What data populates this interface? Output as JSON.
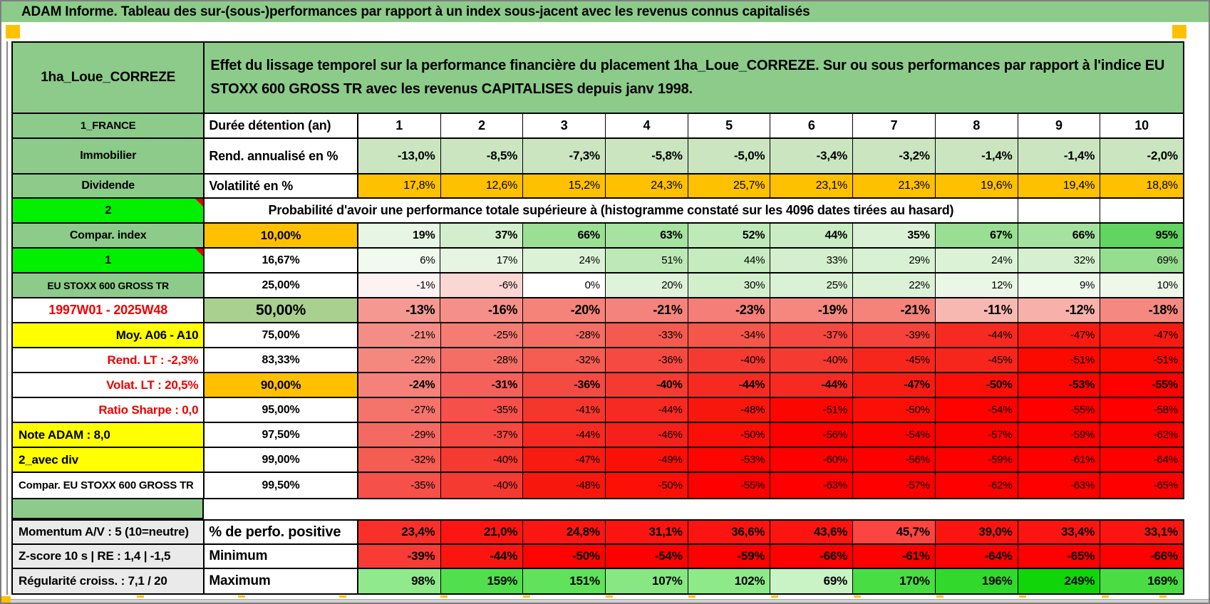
{
  "title": "ADAM Informe. Tableau des sur-(sous-)performances par rapport à un index sous-jacent avec les revenus connus capitalisés",
  "panel": {
    "name": "1ha_Loue_CORREZE",
    "description": "Effet du lissage temporel sur la performance financière du placement 1ha_Loue_CORREZE. Sur ou sous performances par rapport à l'indice EU STOXX 600 GROSS TR avec les revenus CAPITALISES depuis janv 1998."
  },
  "colors": {
    "green": "#8ccb8a",
    "green_mid": "#a9d08e",
    "bright_green": "#00f000",
    "orange": "#ffc000",
    "yellow": "#ffff00",
    "gray_label": "#eaeaea",
    "red_text": "#ee0000",
    "light_green_row": "#cbe5c1",
    "white": "#ffffff"
  },
  "table": {
    "corner": "1_FRANCE",
    "duration_label": "Durée détention (an)",
    "col_numbers": [
      "1",
      "2",
      "3",
      "4",
      "5",
      "6",
      "7",
      "8",
      "9",
      "10"
    ],
    "stat_rows": [
      {
        "label": "Immobilier",
        "metric": "Rend. annualisé en %",
        "values": [
          "-13,0%",
          "-8,5%",
          "-7,3%",
          "-5,8%",
          "-5,0%",
          "-3,4%",
          "-3,2%",
          "-1,4%",
          "-1,4%",
          "-2,0%"
        ],
        "cell_bg": "#cbe5c1",
        "bold": true
      },
      {
        "label": "Dividende",
        "metric": "Volatilité en %",
        "values": [
          "17,8%",
          "12,6%",
          "15,2%",
          "24,3%",
          "25,7%",
          "23,1%",
          "21,3%",
          "19,6%",
          "19,4%",
          "18,8%"
        ],
        "cell_bg": "#ffc000",
        "bold": false
      }
    ],
    "probability_header": {
      "label": "2",
      "note": "Probabilité d'avoir une performance totale supérieure à (histogramme constaté sur les 4096 dates tirées au hasard)"
    },
    "quantile_rows": [
      {
        "label": "Compar. index",
        "label_bg": "#8ccb8a",
        "label_color": "#000",
        "label_align": "center",
        "label_size": 16,
        "triangle": false,
        "pct": "10,00%",
        "pct_bg": "#ffc000",
        "pct_size": 17,
        "values": [
          "19%",
          "37%",
          "66%",
          "63%",
          "52%",
          "44%",
          "35%",
          "67%",
          "66%",
          "95%"
        ],
        "value_bgs": [
          "#e7f5e4",
          "#d2eecc",
          "#9bdf95",
          "#a6e2a0",
          "#bfe9b9",
          "#caecc4",
          "#daf1d5",
          "#99de93",
          "#a5e19f",
          "#61d55f"
        ],
        "values_bold": true,
        "values_size": 16
      },
      {
        "label": "1",
        "label_bg": "#00f000",
        "label_color": "#000",
        "label_align": "center",
        "label_size": 16,
        "triangle": true,
        "pct": "16,67%",
        "pct_bg": "#ffffff",
        "pct_size": 16,
        "values": [
          "6%",
          "17%",
          "24%",
          "51%",
          "44%",
          "33%",
          "29%",
          "24%",
          "32%",
          "69%"
        ],
        "value_bgs": [
          "#f1faef",
          "#e5f5e1",
          "#dcf2d7",
          "#bce9b6",
          "#c5ebbf",
          "#d3efcd",
          "#d8f1d3",
          "#dcf2d7",
          "#d4f0ce",
          "#95de8f"
        ],
        "values_bold": false,
        "values_size": 15
      },
      {
        "label": "EU STOXX 600 GROSS TR",
        "label_bg": "#8ccb8a",
        "label_color": "#000",
        "label_align": "center",
        "label_size": 14,
        "triangle": false,
        "pct": "25,00%",
        "pct_bg": "#ffffff",
        "pct_size": 16,
        "values": [
          "-1%",
          "-6%",
          "0%",
          "20%",
          "30%",
          "25%",
          "22%",
          "12%",
          "9%",
          "10%"
        ],
        "value_bgs": [
          "#fdf2f1",
          "#fad7d3",
          "#ffffff",
          "#def3d9",
          "#d2efcc",
          "#d9f1d4",
          "#dcf2d7",
          "#eaf7e6",
          "#eff9ec",
          "#edf8e9"
        ],
        "values_bold": false,
        "values_size": 15
      },
      {
        "label": "1997W01 - 2025W48",
        "label_bg": "#ffffff",
        "label_color": "#ee0000",
        "label_align": "center",
        "label_size": 18,
        "triangle": false,
        "pct": "50,00%",
        "pct_bg": "#a9d08e",
        "pct_size": 21,
        "values": [
          "-13%",
          "-16%",
          "-20%",
          "-21%",
          "-23%",
          "-19%",
          "-21%",
          "-11%",
          "-12%",
          "-18%"
        ],
        "value_bgs": [
          "#f59892",
          "#f58f89",
          "#f58379",
          "#f5837d",
          "#f57e78",
          "#f5877f",
          "#f58379",
          "#f8b8b2",
          "#f8b0aa",
          "#f58981"
        ],
        "values_bold": true,
        "values_size": 18
      },
      {
        "label": "Moy. A06 - A10",
        "label_bg": "#ffff00",
        "label_color": "#000",
        "label_align": "right",
        "label_size": 17,
        "triangle": false,
        "pct": "75,00%",
        "pct_bg": "#ffffff",
        "pct_size": 16,
        "values": [
          "-21%",
          "-25%",
          "-28%",
          "-33%",
          "-34%",
          "-37%",
          "-39%",
          "-44%",
          "-47%",
          "-47%"
        ],
        "value_bgs": [
          "#f48d85",
          "#f47c73",
          "#f46e65",
          "#f55a50",
          "#f5564c",
          "#f54840",
          "#f5423a",
          "#f62a21",
          "#f71b11",
          "#f71b11"
        ],
        "values_bold": false,
        "values_size": 15
      },
      {
        "label": "Rend. LT :  -2,3%",
        "label_bg": "#ffffff",
        "label_color": "#ee0000",
        "label_align": "right",
        "label_size": 17,
        "triangle": false,
        "pct": "83,33%",
        "pct_bg": "#ffffff",
        "pct_size": 16,
        "values": [
          "-22%",
          "-28%",
          "-32%",
          "-36%",
          "-40%",
          "-40%",
          "-45%",
          "-45%",
          "-51%",
          "-51%"
        ],
        "value_bgs": [
          "#f4887f",
          "#f46e65",
          "#f55c52",
          "#f54a42",
          "#f53a31",
          "#f53a31",
          "#f6261d",
          "#f6261d",
          "#fb0a02",
          "#fb0a02"
        ],
        "values_bold": false,
        "values_size": 15
      },
      {
        "label": "Volat. LT :  20,5%",
        "label_bg": "#ffffff",
        "label_color": "#ee0000",
        "label_align": "right",
        "label_size": 17,
        "triangle": false,
        "pct": "90,00%",
        "pct_bg": "#ffc000",
        "pct_size": 17,
        "values": [
          "-24%",
          "-31%",
          "-36%",
          "-40%",
          "-44%",
          "-44%",
          "-47%",
          "-50%",
          "-53%",
          "-55%"
        ],
        "value_bgs": [
          "#f4817a",
          "#f5615a",
          "#f54a42",
          "#f53a31",
          "#f62a21",
          "#f62a21",
          "#f71b11",
          "#fb0f06",
          "#fd0500",
          "#fe0000"
        ],
        "values_bold": true,
        "values_size": 16
      },
      {
        "label": "Ratio Sharpe :  0,0",
        "label_bg": "#ffffff",
        "label_color": "#ee0000",
        "label_align": "right",
        "label_size": 17,
        "triangle": false,
        "pct": "95,00%",
        "pct_bg": "#ffffff",
        "pct_size": 16,
        "values": [
          "-27%",
          "-35%",
          "-41%",
          "-44%",
          "-48%",
          "-51%",
          "-50%",
          "-54%",
          "-55%",
          "-58%"
        ],
        "value_bgs": [
          "#f4736b",
          "#f5504a",
          "#f5362d",
          "#f62a21",
          "#f7170d",
          "#fb0600",
          "#fb0f06",
          "#fe0200",
          "#fe0000",
          "#ff0000"
        ],
        "values_bold": false,
        "values_size": 15
      },
      {
        "label": "Note ADAM : 8,0",
        "label_bg": "#ffff00",
        "label_color": "#000",
        "label_align": "left",
        "label_size": 17,
        "triangle": false,
        "pct": "97,50%",
        "pct_bg": "#ffffff",
        "pct_size": 16,
        "values": [
          "-29%",
          "-37%",
          "-44%",
          "-46%",
          "-50%",
          "-56%",
          "-54%",
          "-57%",
          "-59%",
          "-62%"
        ],
        "value_bgs": [
          "#f46a62",
          "#f54840",
          "#f62a21",
          "#f6201a",
          "#fb0f06",
          "#fe0000",
          "#fe0200",
          "#ff0000",
          "#ff0000",
          "#ff0000"
        ],
        "values_bold": false,
        "values_size": 15
      },
      {
        "label": "2_avec div",
        "label_bg": "#ffff00",
        "label_color": "#000",
        "label_align": "left",
        "label_size": 17,
        "triangle": false,
        "pct": "99,00%",
        "pct_bg": "#ffffff",
        "pct_size": 16,
        "values": [
          "-32%",
          "-40%",
          "-47%",
          "-49%",
          "-53%",
          "-60%",
          "-56%",
          "-59%",
          "-61%",
          "-64%"
        ],
        "value_bgs": [
          "#f55c52",
          "#f53a31",
          "#f71b11",
          "#fb1008",
          "#fd0500",
          "#ff0000",
          "#fe0000",
          "#ff0000",
          "#ff0000",
          "#ff0000"
        ],
        "values_bold": false,
        "values_size": 15
      },
      {
        "label": "Compar. EU STOXX 600 GROSS TR",
        "label_bg": "#ffffff",
        "label_color": "#000",
        "label_align": "left",
        "label_size": 15,
        "triangle": false,
        "pct": "99,50%",
        "pct_bg": "#ffffff",
        "pct_size": 16,
        "values": [
          "-35%",
          "-40%",
          "-48%",
          "-50%",
          "-55%",
          "-63%",
          "-57%",
          "-62%",
          "-63%",
          "-65%"
        ],
        "value_bgs": [
          "#f5504a",
          "#f53a31",
          "#f7170d",
          "#fb0f06",
          "#fe0000",
          "#ff0000",
          "#ff0000",
          "#ff0000",
          "#ff0000",
          "#ff0000"
        ],
        "values_bold": false,
        "values_size": 15
      }
    ],
    "footer_rows": [
      {
        "label": "Momentum A/V : 5 (10=neutre)",
        "metric": "% de perfo. positive",
        "metric_size": 20,
        "values": [
          "23,4%",
          "21,0%",
          "24,8%",
          "31,1%",
          "36,6%",
          "43,6%",
          "45,7%",
          "39,0%",
          "33,4%",
          "33,1%"
        ],
        "value_bgs": [
          "#f9302a",
          "#fb1611",
          "#fb1611",
          "#fa1510",
          "#fa1510",
          "#fa1510",
          "#fc4540",
          "#fa1510",
          "#fa1510",
          "#fa1510"
        ]
      },
      {
        "label": "Z-score 10 s | RE : 1,4 | -1,5",
        "metric": "Minimum",
        "metric_size": 19,
        "values": [
          "-39%",
          "-44%",
          "-50%",
          "-54%",
          "-59%",
          "-66%",
          "-61%",
          "-64%",
          "-65%",
          "-66%"
        ],
        "value_bgs": [
          "#f83b34",
          "#fa1510",
          "#fe0300",
          "#fe0000",
          "#ff0000",
          "#ff0000",
          "#ff0000",
          "#ff0000",
          "#ff0000",
          "#ff0000"
        ]
      },
      {
        "label": "Régularité croiss. : 7,1 / 20",
        "metric": "Maximum",
        "metric_size": 19,
        "values": [
          "98%",
          "159%",
          "151%",
          "107%",
          "102%",
          "69%",
          "170%",
          "196%",
          "249%",
          "169%"
        ],
        "value_bgs": [
          "#90e98b",
          "#52df4d",
          "#60e25b",
          "#87e782",
          "#8ee989",
          "#caf3c5",
          "#48dd42",
          "#30d92b",
          "#10d508",
          "#49dd43"
        ]
      }
    ]
  }
}
